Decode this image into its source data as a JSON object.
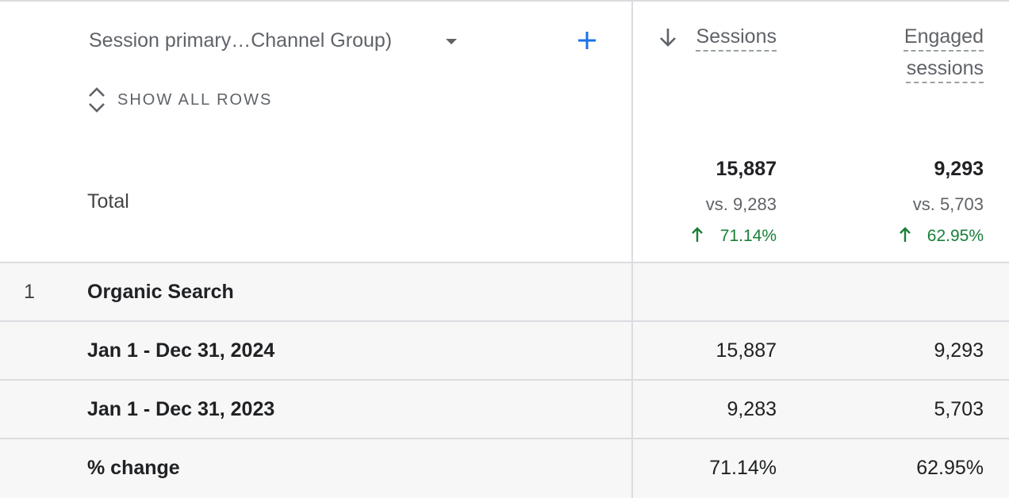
{
  "header": {
    "dimension": "Session primary…Channel Group)",
    "show_all_rows": "SHOW ALL ROWS",
    "columns": [
      "Sessions",
      "Engaged sessions"
    ]
  },
  "total": {
    "label": "Total",
    "values": [
      {
        "value": "15,887",
        "comparison": "vs. 9,283",
        "change": "71.14%"
      },
      {
        "value": "9,293",
        "comparison": "vs. 5,703",
        "change": "62.95%"
      }
    ]
  },
  "rows": [
    {
      "index": "1",
      "label": "Organic Search",
      "subrows": [
        {
          "label": "Jan 1 - Dec 31, 2024",
          "values": [
            "15,887",
            "9,293"
          ]
        },
        {
          "label": "Jan 1 - Dec 31, 2023",
          "values": [
            "9,283",
            "5,703"
          ]
        },
        {
          "label": "% change",
          "values": [
            "71.14%",
            "62.95%"
          ]
        }
      ]
    }
  ]
}
